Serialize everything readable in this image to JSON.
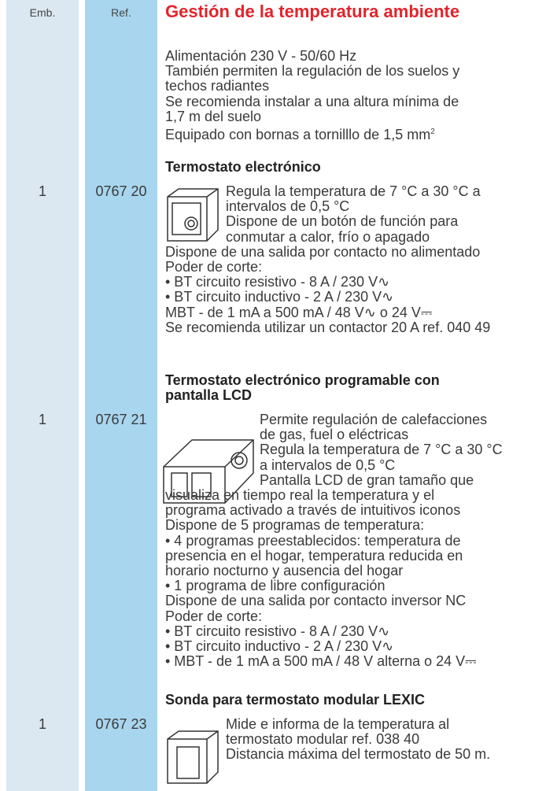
{
  "header": {
    "emb": "Emb.",
    "ref": "Ref.",
    "title": "Gestión de la temperatura ambiente"
  },
  "intro": [
    "Alimentación 230 V - 50/60 Hz",
    "También permiten la regulación de los suelos y",
    "techos radiantes",
    "Se recomienda instalar a una altura mínima de",
    "1,7 m del suelo",
    "Equipado con bornas a tornilllo de 1,5 mm"
  ],
  "intro_sup": "2",
  "products": [
    {
      "heading": [
        "Termostato electrónico"
      ],
      "emb": "1",
      "ref": "0767 20",
      "lines": [
        "Regula la temperatura de 7 °C a 30 °C a",
        "intervalos de 0,5 °C",
        "Dispone de un botón de función para",
        "conmutar a calor, frío o apagado",
        "Dispone de una salida por contacto no alimentado",
        "Poder de corte:",
        "• BT circuito resistivo - 8 A / 230 V∿",
        "• BT circuito inductivo - 2 A / 230 V∿",
        "MBT - de 1 mA a 500 mA / 48 V∿ o 24 V⎓",
        "Se recomienda utilizar un contactor 20 A ref. 040 49"
      ]
    },
    {
      "heading": [
        "Termostato electrónico programable con",
        "pantalla LCD"
      ],
      "emb": "1",
      "ref": "0767 21",
      "lines": [
        "Permite regulación de calefacciones",
        "de gas, fuel o eléctricas",
        "Regula la temperatura de 7 °C a 30 °C",
        "a intervalos de 0,5 °C",
        "Pantalla LCD de gran tamaño que",
        "visualiza en tiempo real la temperatura y el",
        "programa activado a través de intuitivos iconos",
        "Dispone de 5 programas de temperatura:",
        "• 4 programas preestablecidos: temperatura de",
        "presencia en el hogar, temperatura reducida en",
        "horario nocturno y ausencia del hogar",
        "• 1 programa de libre configuración",
        "Dispone de una salida por contacto inversor NC",
        "Poder de corte:",
        "• BT circuito resistivo - 8 A / 230 V∿",
        "• BT circuito inductivo - 2 A / 230 V∿",
        "• MBT - de 1 mA a 500 mA / 48 V alterna o 24 V⎓"
      ]
    },
    {
      "heading": [
        "Sonda para termostato modular LEXIC"
      ],
      "emb": "1",
      "ref": "0767 23",
      "lines": [
        "Mide e informa de la temperatura al",
        "termostato modular ref. 038 40",
        "Distancia máxima del termostato de 50 m."
      ]
    }
  ]
}
